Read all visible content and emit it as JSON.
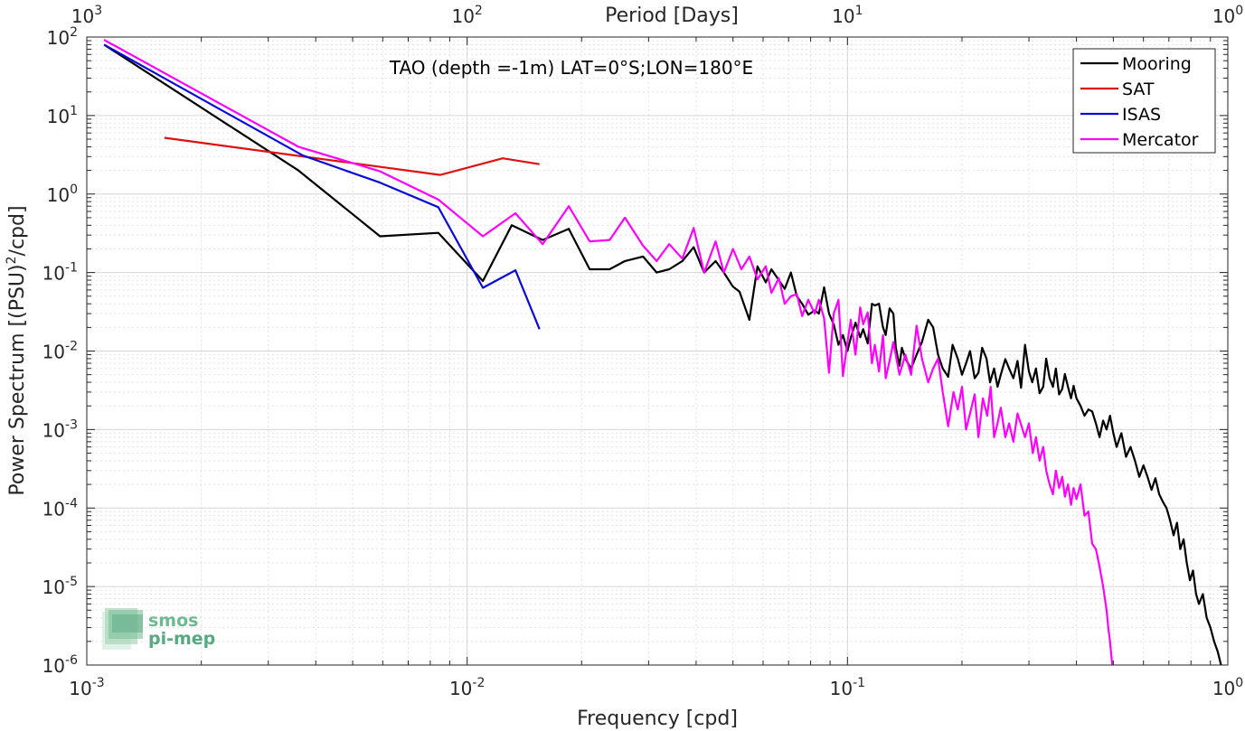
{
  "chart_data": {
    "type": "line",
    "title": "TAO (depth =-1m) LAT=0°S;LON=180°E",
    "xlabel": "Frequency [cpd]",
    "ylabel": "Power Spectrum [(PSU)",
    "ylabel_sup": "2",
    "ylabel_tail": "/cpd]",
    "x2label": "Period [Days]",
    "xscale": "log",
    "yscale": "log",
    "xlim": [
      0.001,
      1
    ],
    "ylim": [
      1e-06,
      100
    ],
    "grid": true,
    "legend_position": "top-right",
    "xticks": [
      {
        "value": 0.001,
        "base": "10",
        "exp": "-3"
      },
      {
        "value": 0.01,
        "base": "10",
        "exp": "-2"
      },
      {
        "value": 0.1,
        "base": "10",
        "exp": "-1"
      },
      {
        "value": 1,
        "base": "10",
        "exp": "0"
      }
    ],
    "yticks": [
      {
        "value": 100,
        "base": "10",
        "exp": "2"
      },
      {
        "value": 10,
        "base": "10",
        "exp": "1"
      },
      {
        "value": 1,
        "base": "10",
        "exp": "0"
      },
      {
        "value": 0.1,
        "base": "10",
        "exp": "-1"
      },
      {
        "value": 0.01,
        "base": "10",
        "exp": "-2"
      },
      {
        "value": 0.001,
        "base": "10",
        "exp": "-3"
      },
      {
        "value": 0.0001,
        "base": "10",
        "exp": "-4"
      },
      {
        "value": 1e-05,
        "base": "10",
        "exp": "-5"
      },
      {
        "value": 1e-06,
        "base": "10",
        "exp": "-6"
      }
    ],
    "x2ticks": [
      {
        "value": 0.001,
        "base": "10",
        "exp": "3"
      },
      {
        "value": 0.01,
        "base": "10",
        "exp": "2"
      },
      {
        "value": 0.1,
        "base": "10",
        "exp": "1"
      },
      {
        "value": 1,
        "base": "10",
        "exp": "0"
      }
    ],
    "series": [
      {
        "name": "Mooring",
        "color": "#000000",
        "points": [
          [
            0.00111,
            80
          ],
          [
            0.0036,
            2.0
          ],
          [
            0.0059,
            0.29
          ],
          [
            0.0084,
            0.32
          ],
          [
            0.011,
            0.078
          ],
          [
            0.0131,
            0.4
          ],
          [
            0.0158,
            0.26
          ],
          [
            0.0185,
            0.36
          ],
          [
            0.021,
            0.11
          ],
          [
            0.0237,
            0.11
          ],
          [
            0.026,
            0.14
          ],
          [
            0.029,
            0.16
          ],
          [
            0.0315,
            0.1
          ],
          [
            0.034,
            0.11
          ],
          [
            0.0368,
            0.14
          ],
          [
            0.0394,
            0.21
          ],
          [
            0.042,
            0.1
          ],
          [
            0.045,
            0.14
          ],
          [
            0.0473,
            0.1
          ],
          [
            0.05,
            0.066
          ],
          [
            0.052,
            0.057
          ],
          [
            0.0552,
            0.025
          ],
          [
            0.058,
            0.12
          ],
          [
            0.061,
            0.075
          ],
          [
            0.0631,
            0.11
          ],
          [
            0.066,
            0.08
          ],
          [
            0.0684,
            0.062
          ],
          [
            0.071,
            0.1
          ],
          [
            0.0736,
            0.05
          ],
          [
            0.076,
            0.04
          ],
          [
            0.0789,
            0.029
          ],
          [
            0.082,
            0.033
          ],
          [
            0.0841,
            0.03
          ],
          [
            0.0868,
            0.065
          ],
          [
            0.0894,
            0.03
          ],
          [
            0.092,
            0.022
          ],
          [
            0.0947,
            0.012
          ],
          [
            0.0973,
            0.016
          ],
          [
            0.1,
            0.01
          ],
          [
            0.102,
            0.0148
          ],
          [
            0.105,
            0.023
          ],
          [
            0.108,
            0.015
          ],
          [
            0.11,
            0.019
          ],
          [
            0.113,
            0.0125
          ],
          [
            0.116,
            0.04
          ],
          [
            0.118,
            0.038
          ],
          [
            0.121,
            0.04
          ],
          [
            0.124,
            0.02
          ],
          [
            0.126,
            0.016
          ],
          [
            0.129,
            0.035
          ],
          [
            0.132,
            0.03
          ],
          [
            0.134,
            0.011
          ],
          [
            0.137,
            0.0065
          ],
          [
            0.139,
            0.011
          ],
          [
            0.142,
            0.008
          ],
          [
            0.147,
            0.006
          ],
          [
            0.152,
            0.009
          ],
          [
            0.157,
            0.013
          ],
          [
            0.163,
            0.025
          ],
          [
            0.168,
            0.02
          ],
          [
            0.173,
            0.009
          ],
          [
            0.178,
            0.006
          ],
          [
            0.184,
            0.0047
          ],
          [
            0.189,
            0.012
          ],
          [
            0.195,
            0.008
          ],
          [
            0.2,
            0.005
          ],
          [
            0.205,
            0.007
          ],
          [
            0.21,
            0.01
          ],
          [
            0.216,
            0.0045
          ],
          [
            0.221,
            0.0053
          ],
          [
            0.226,
            0.011
          ],
          [
            0.232,
            0.008
          ],
          [
            0.237,
            0.004
          ],
          [
            0.243,
            0.006
          ],
          [
            0.248,
            0.0035
          ],
          [
            0.253,
            0.005
          ],
          [
            0.26,
            0.0079
          ],
          [
            0.266,
            0.006
          ],
          [
            0.273,
            0.0045
          ],
          [
            0.28,
            0.0075
          ],
          [
            0.286,
            0.0034
          ],
          [
            0.293,
            0.012
          ],
          [
            0.3,
            0.0055
          ],
          [
            0.306,
            0.004
          ],
          [
            0.313,
            0.006
          ],
          [
            0.32,
            0.0029
          ],
          [
            0.327,
            0.0035
          ],
          [
            0.333,
            0.008
          ],
          [
            0.34,
            0.0045
          ],
          [
            0.347,
            0.0035
          ],
          [
            0.353,
            0.006
          ],
          [
            0.36,
            0.0028
          ],
          [
            0.367,
            0.0033
          ],
          [
            0.373,
            0.0051
          ],
          [
            0.38,
            0.0035
          ],
          [
            0.387,
            0.0025
          ],
          [
            0.393,
            0.0036
          ],
          [
            0.4,
            0.0025
          ],
          [
            0.41,
            0.002
          ],
          [
            0.42,
            0.0015
          ],
          [
            0.43,
            0.0018
          ],
          [
            0.44,
            0.0017
          ],
          [
            0.45,
            0.0012
          ],
          [
            0.46,
            0.0008
          ],
          [
            0.47,
            0.0013
          ],
          [
            0.48,
            0.001
          ],
          [
            0.49,
            0.0015
          ],
          [
            0.5,
            0.0009
          ],
          [
            0.51,
            0.0006
          ],
          [
            0.525,
            0.0009
          ],
          [
            0.54,
            0.00045
          ],
          [
            0.555,
            0.0006
          ],
          [
            0.57,
            0.0004
          ],
          [
            0.585,
            0.00025
          ],
          [
            0.6,
            0.00035
          ],
          [
            0.615,
            0.00025
          ],
          [
            0.63,
            0.00017
          ],
          [
            0.645,
            0.00024
          ],
          [
            0.66,
            0.00015
          ],
          [
            0.675,
            0.00012
          ],
          [
            0.69,
            0.0001
          ],
          [
            0.705,
            7e-05
          ],
          [
            0.72,
            4.5e-05
          ],
          [
            0.735,
            6.5e-05
          ],
          [
            0.75,
            3e-05
          ],
          [
            0.765,
            4e-05
          ],
          [
            0.78,
            2e-05
          ],
          [
            0.795,
            1.2e-05
          ],
          [
            0.81,
            1.6e-05
          ],
          [
            0.825,
            8e-06
          ],
          [
            0.84,
            6e-06
          ],
          [
            0.86,
            8e-06
          ],
          [
            0.88,
            4e-06
          ],
          [
            0.9,
            3e-06
          ],
          [
            0.92,
            2e-06
          ],
          [
            0.94,
            1.5e-06
          ],
          [
            0.96,
            1e-06
          ]
        ]
      },
      {
        "name": "SAT",
        "color": "#e01010",
        "points": [
          [
            0.0016,
            5.2
          ],
          [
            0.0085,
            1.75
          ],
          [
            0.0124,
            2.85
          ],
          [
            0.0155,
            2.4
          ]
        ]
      },
      {
        "name": "ISAS",
        "color": "#0b0bd9",
        "points": [
          [
            0.00111,
            80
          ],
          [
            0.0037,
            3.1
          ],
          [
            0.0059,
            1.4
          ],
          [
            0.0084,
            0.68
          ],
          [
            0.011,
            0.064
          ],
          [
            0.0134,
            0.107
          ],
          [
            0.0155,
            0.019
          ]
        ]
      },
      {
        "name": "Mercator",
        "color": "#ff00ff",
        "points": [
          [
            0.00111,
            92
          ],
          [
            0.0036,
            4.0
          ],
          [
            0.0059,
            1.95
          ],
          [
            0.0084,
            0.85
          ],
          [
            0.011,
            0.29
          ],
          [
            0.0134,
            0.57
          ],
          [
            0.0158,
            0.23
          ],
          [
            0.0185,
            0.7
          ],
          [
            0.021,
            0.25
          ],
          [
            0.0237,
            0.26
          ],
          [
            0.026,
            0.5
          ],
          [
            0.029,
            0.22
          ],
          [
            0.0315,
            0.14
          ],
          [
            0.034,
            0.23
          ],
          [
            0.0368,
            0.15
          ],
          [
            0.0394,
            0.37
          ],
          [
            0.042,
            0.1
          ],
          [
            0.045,
            0.25
          ],
          [
            0.0473,
            0.1
          ],
          [
            0.05,
            0.2
          ],
          [
            0.0526,
            0.11
          ],
          [
            0.0552,
            0.16
          ],
          [
            0.058,
            0.082
          ],
          [
            0.061,
            0.12
          ],
          [
            0.0631,
            0.055
          ],
          [
            0.066,
            0.085
          ],
          [
            0.0684,
            0.04
          ],
          [
            0.071,
            0.05
          ],
          [
            0.0736,
            0.053
          ],
          [
            0.076,
            0.028
          ],
          [
            0.0789,
            0.045
          ],
          [
            0.082,
            0.03
          ],
          [
            0.0841,
            0.045
          ],
          [
            0.0868,
            0.026
          ],
          [
            0.0894,
            0.0053
          ],
          [
            0.092,
            0.03
          ],
          [
            0.0947,
            0.045
          ],
          [
            0.0973,
            0.0048
          ],
          [
            0.1,
            0.013
          ],
          [
            0.102,
            0.025
          ],
          [
            0.105,
            0.009
          ],
          [
            0.108,
            0.036
          ],
          [
            0.11,
            0.022
          ],
          [
            0.113,
            0.031
          ],
          [
            0.116,
            0.007
          ],
          [
            0.118,
            0.012
          ],
          [
            0.121,
            0.0055
          ],
          [
            0.124,
            0.016
          ],
          [
            0.126,
            0.0045
          ],
          [
            0.129,
            0.0075
          ],
          [
            0.132,
            0.013
          ],
          [
            0.137,
            0.005
          ],
          [
            0.142,
            0.009
          ],
          [
            0.147,
            0.005
          ],
          [
            0.152,
            0.021
          ],
          [
            0.157,
            0.008
          ],
          [
            0.163,
            0.004
          ],
          [
            0.168,
            0.006
          ],
          [
            0.173,
            0.008
          ],
          [
            0.178,
            0.003
          ],
          [
            0.184,
            0.0011
          ],
          [
            0.19,
            0.003
          ],
          [
            0.195,
            0.0018
          ],
          [
            0.2,
            0.0035
          ],
          [
            0.205,
            0.001
          ],
          [
            0.21,
            0.0016
          ],
          [
            0.216,
            0.0028
          ],
          [
            0.221,
            0.0008
          ],
          [
            0.227,
            0.0025
          ],
          [
            0.233,
            0.0015
          ],
          [
            0.238,
            0.0035
          ],
          [
            0.243,
            0.0008
          ],
          [
            0.248,
            0.0012
          ],
          [
            0.253,
            0.0019
          ],
          [
            0.26,
            0.0008
          ],
          [
            0.266,
            0.0012
          ],
          [
            0.273,
            0.0007
          ],
          [
            0.28,
            0.0016
          ],
          [
            0.287,
            0.0011
          ],
          [
            0.293,
            0.0008
          ],
          [
            0.3,
            0.0012
          ],
          [
            0.307,
            0.0005
          ],
          [
            0.313,
            0.0008
          ],
          [
            0.32,
            0.0004
          ],
          [
            0.327,
            0.0006
          ],
          [
            0.333,
            0.0003
          ],
          [
            0.34,
            0.0002
          ],
          [
            0.347,
            0.00015
          ],
          [
            0.353,
            0.0003
          ],
          [
            0.36,
            0.00018
          ],
          [
            0.367,
            0.00025
          ],
          [
            0.373,
            0.00014
          ],
          [
            0.38,
            0.0002
          ],
          [
            0.387,
            0.00011
          ],
          [
            0.393,
            0.00018
          ],
          [
            0.4,
            0.00013
          ],
          [
            0.41,
            0.0002
          ],
          [
            0.42,
            8e-05
          ],
          [
            0.43,
            9e-05
          ],
          [
            0.44,
            3.5e-05
          ],
          [
            0.45,
            3e-05
          ],
          [
            0.46,
            1.8e-05
          ],
          [
            0.47,
            1e-05
          ],
          [
            0.48,
            5e-06
          ],
          [
            0.485,
            3e-06
          ],
          [
            0.49,
            2e-06
          ],
          [
            0.495,
            1.2e-06
          ],
          [
            0.5,
            8e-07
          ]
        ]
      }
    ]
  },
  "watermark": {
    "line1": "smos",
    "line2": "pi-mep"
  }
}
